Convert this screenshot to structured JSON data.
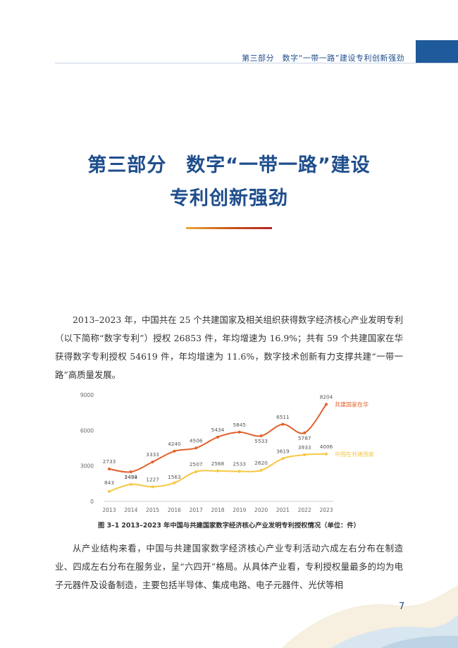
{
  "header": {
    "section_title": "第三部分　数字“一带一路”建设专利创新强劲"
  },
  "title": {
    "line1": "第三部分　数字“一带一路”建设",
    "line2": "专利创新强劲"
  },
  "paragraphs": {
    "intro": "2013–2023 年，中国共在 25 个共建国家及相关组织获得数字经济核心产业发明专利（以下简称“数字专利”）授权 26853 件，年均增速为 16.9%；共有 59 个共建国家在华获得数字专利授权 54619 件，年均增速为 11.6%，数字技术创新有力支撑共建“一带一路”高质量发展。",
    "structure": "从产业结构来看，中国与共建国家数字经济核心产业专利活动六成左右分布在制造业、四成左右分布在服务业，呈“六四开”格局。从具体产业看，专利授权量最多的均为电子元器件及设备制造，主要包括半导体、集成电路、电子元器件、光伏等相"
  },
  "chart_data": {
    "type": "line",
    "categories": [
      "2013",
      "2014",
      "2015",
      "2016",
      "2017",
      "2018",
      "2019",
      "2020",
      "2021",
      "2022",
      "2023"
    ],
    "series": [
      {
        "name": "共建国家在华",
        "values": [
          2733,
          2493,
          3333,
          4240,
          4506,
          5434,
          5845,
          5533,
          6511,
          5787,
          8204
        ],
        "color": "#e0622d"
      },
      {
        "name": "中国在共建国家",
        "values": [
          843,
          1434,
          1227,
          1563,
          2507,
          2568,
          2533,
          2620,
          3619,
          3933,
          4006
        ],
        "color": "#f6c842"
      }
    ],
    "yticks": [
      0,
      3000,
      6000,
      9000
    ],
    "ylim": [
      0,
      9000
    ],
    "title": "",
    "xlabel": "",
    "ylabel": "",
    "grid": false,
    "legend": "right-end-of-lines"
  },
  "caption": "图 3–1 2013–2023 年中国与共建国家数字经济核心产业发明专利授权情况（单位：件）",
  "page_number": "7",
  "colors": {
    "accent_blue": "#1f4e8c",
    "orange": "#e0622d",
    "yellow": "#f6c842"
  }
}
